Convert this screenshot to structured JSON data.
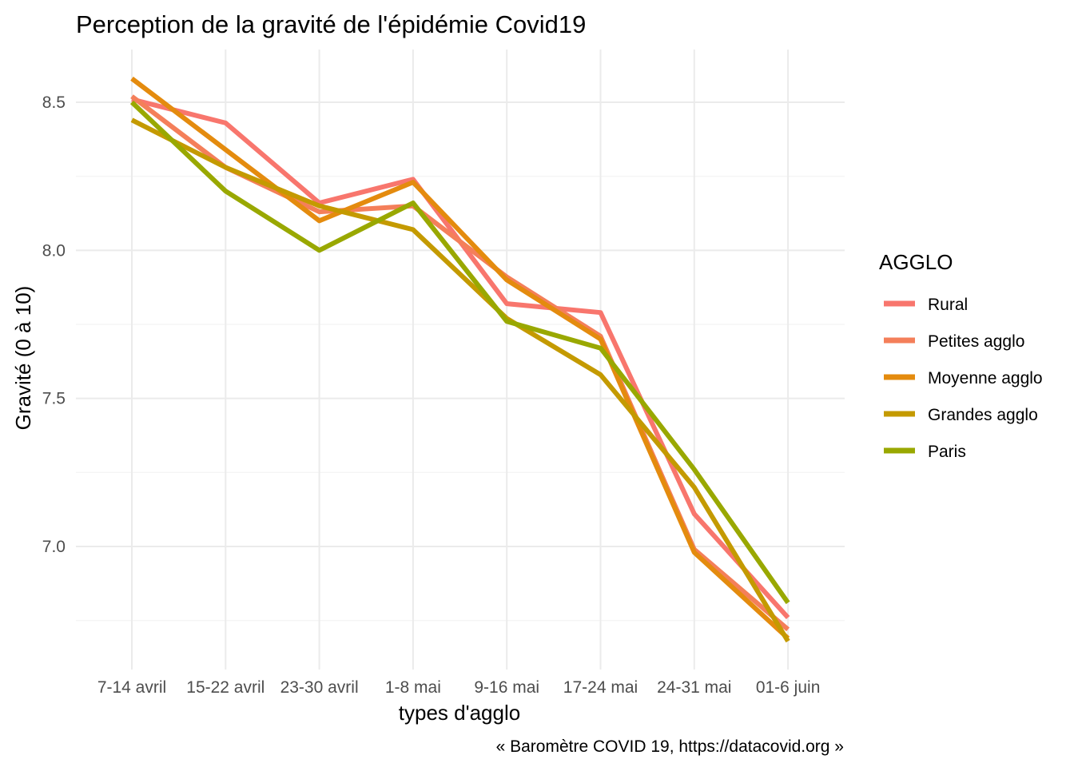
{
  "chart_data": {
    "type": "line",
    "title": "Perception de la gravité de l'épidémie Covid19",
    "xlabel": "types d'agglo",
    "ylabel": "Gravité (0 à 10)",
    "caption": "« Baromètre COVID 19, https://datacovid.org »",
    "categories": [
      "7-14 avril",
      "15-22 avril",
      "23-30 avril",
      "1-8 mai",
      "9-16 mai",
      "17-24 mai",
      "24-31 mai",
      "01-6 juin"
    ],
    "ylim": [
      6.6,
      8.7
    ],
    "yticks": [
      7.0,
      7.5,
      8.0,
      8.5
    ],
    "ytick_labels": [
      "7.0",
      "7.5",
      "8.0",
      "8.5"
    ],
    "grid": true,
    "legend": {
      "title": "AGGLO",
      "position": "right"
    },
    "series": [
      {
        "name": "Rural",
        "color": "#F8766D",
        "values": [
          8.51,
          8.43,
          8.16,
          8.24,
          7.82,
          7.79,
          7.11,
          6.76
        ]
      },
      {
        "name": "Petites agglo",
        "color": "#F47F5A",
        "values": [
          8.52,
          8.28,
          8.13,
          8.15,
          7.91,
          7.71,
          6.99,
          6.72
        ]
      },
      {
        "name": "Moyenne agglo",
        "color": "#E48B0E",
        "values": [
          8.58,
          8.34,
          8.1,
          8.23,
          7.9,
          7.7,
          6.98,
          6.69
        ]
      },
      {
        "name": "Grandes agglo",
        "color": "#C49A00",
        "values": [
          8.44,
          8.28,
          8.15,
          8.07,
          7.77,
          7.58,
          7.2,
          6.68
        ]
      },
      {
        "name": "Paris",
        "color": "#99A800",
        "values": [
          8.5,
          8.2,
          8.0,
          8.16,
          7.76,
          7.67,
          7.26,
          6.81
        ]
      }
    ]
  }
}
